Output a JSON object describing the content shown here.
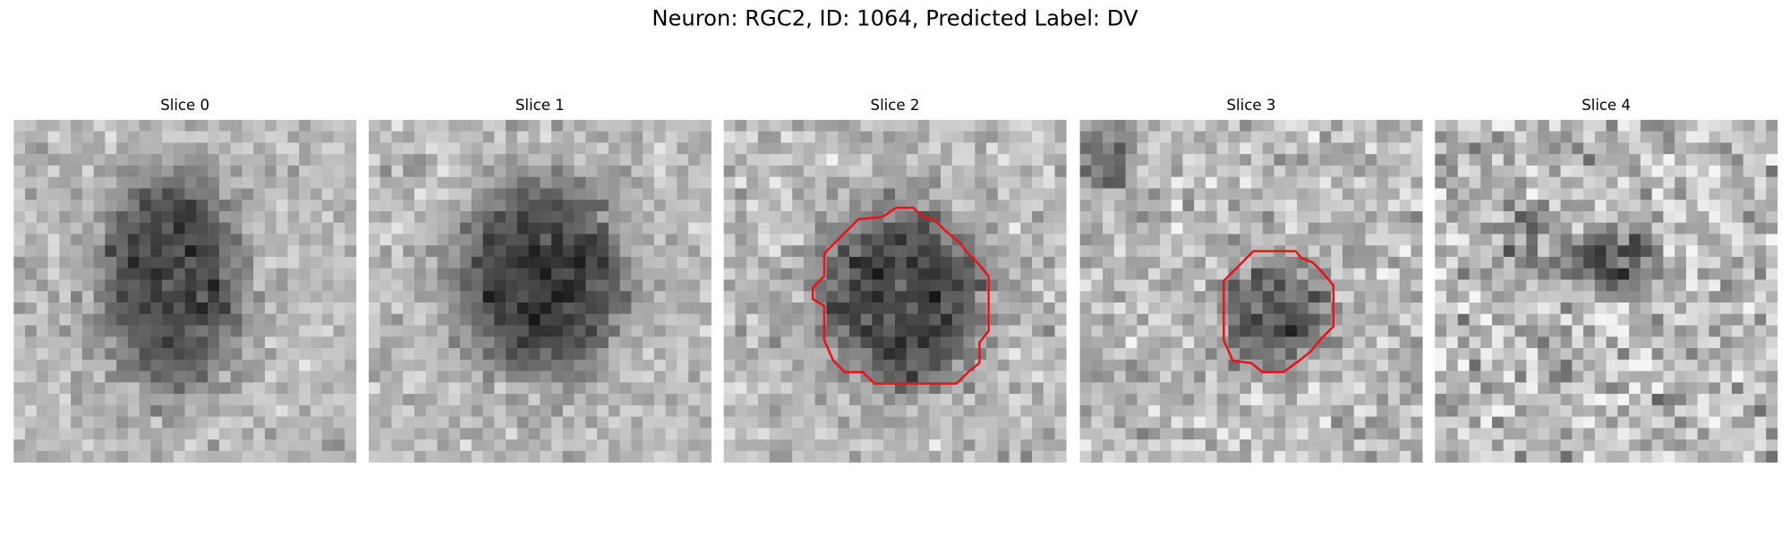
{
  "header": {
    "title": "Neuron: RGC2, ID: 1064, Predicted Label: DV"
  },
  "slices": [
    {
      "title": "Slice 0"
    },
    {
      "title": "Slice 1"
    },
    {
      "title": "Slice 2"
    },
    {
      "title": "Slice 3"
    },
    {
      "title": "Slice 4"
    }
  ]
}
